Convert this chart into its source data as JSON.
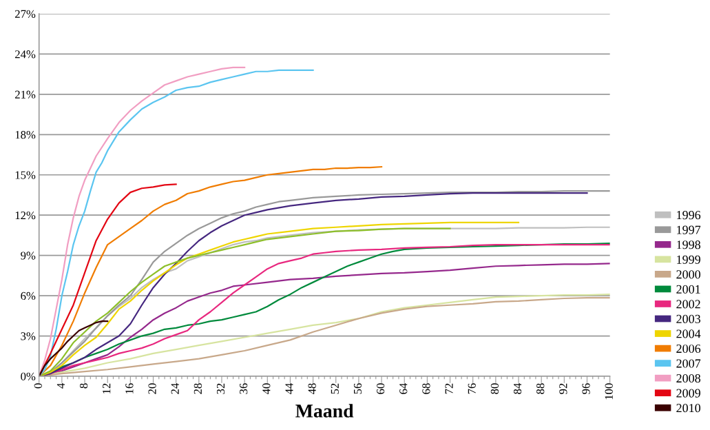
{
  "chart_data": {
    "type": "line",
    "xlabel": "Maand",
    "grid": "y",
    "legend": "right",
    "marker": "none",
    "line_style": "solid",
    "xlim": [
      0,
      100
    ],
    "ylim": [
      0,
      27
    ],
    "xticks": [
      0,
      {
        "value": 1,
        "label": null
      },
      {
        "value": 2,
        "label": null
      },
      {
        "value": 3,
        "label": null
      },
      4,
      {
        "value": 5,
        "label": null
      },
      {
        "value": 6,
        "label": null
      },
      {
        "value": 7,
        "label": null
      },
      8,
      {
        "value": 9,
        "label": null
      },
      {
        "value": 10,
        "label": null
      },
      {
        "value": 11,
        "label": null
      },
      12,
      {
        "value": 13,
        "label": null
      },
      {
        "value": 14,
        "label": null
      },
      {
        "value": 15,
        "label": null
      },
      16,
      {
        "value": 17,
        "label": null
      },
      {
        "value": 18,
        "label": null
      },
      {
        "value": 19,
        "label": null
      },
      20,
      {
        "value": 21,
        "label": null
      },
      {
        "value": 22,
        "label": null
      },
      {
        "value": 23,
        "label": null
      },
      24,
      {
        "value": 25,
        "label": null
      },
      {
        "value": 26,
        "label": null
      },
      {
        "value": 27,
        "label": null
      },
      28,
      {
        "value": 29,
        "label": null
      },
      {
        "value": 30,
        "label": null
      },
      {
        "value": 31,
        "label": null
      },
      32,
      {
        "value": 33,
        "label": null
      },
      {
        "value": 34,
        "label": null
      },
      {
        "value": 35,
        "label": null
      },
      36,
      {
        "value": 37,
        "label": null
      },
      {
        "value": 38,
        "label": null
      },
      {
        "value": 39,
        "label": null
      },
      40,
      {
        "value": 41,
        "label": null
      },
      {
        "value": 42,
        "label": null
      },
      {
        "value": 43,
        "label": null
      },
      44,
      {
        "value": 45,
        "label": null
      },
      {
        "value": 46,
        "label": null
      },
      {
        "value": 47,
        "label": null
      },
      48,
      {
        "value": 49,
        "label": null
      },
      {
        "value": 50,
        "label": null
      },
      {
        "value": 51,
        "label": null
      },
      52,
      {
        "value": 53,
        "label": null
      },
      {
        "value": 54,
        "label": null
      },
      {
        "value": 55,
        "label": null
      },
      56,
      {
        "value": 57,
        "label": null
      },
      {
        "value": 58,
        "label": null
      },
      {
        "value": 59,
        "label": null
      },
      60,
      {
        "value": 61,
        "label": null
      },
      {
        "value": 62,
        "label": null
      },
      {
        "value": 63,
        "label": null
      },
      64,
      {
        "value": 65,
        "label": null
      },
      {
        "value": 66,
        "label": null
      },
      {
        "value": 67,
        "label": null
      },
      68,
      {
        "value": 69,
        "label": null
      },
      {
        "value": 70,
        "label": null
      },
      {
        "value": 71,
        "label": null
      },
      72,
      {
        "value": 73,
        "label": null
      },
      {
        "value": 74,
        "label": null
      },
      {
        "value": 75,
        "label": null
      },
      76,
      {
        "value": 77,
        "label": null
      },
      {
        "value": 78,
        "label": null
      },
      {
        "value": 79,
        "label": null
      },
      80,
      {
        "value": 81,
        "label": null
      },
      {
        "value": 82,
        "label": null
      },
      {
        "value": 83,
        "label": null
      },
      84,
      {
        "value": 85,
        "label": null
      },
      {
        "value": 86,
        "label": null
      },
      {
        "value": 87,
        "label": null
      },
      88,
      {
        "value": 89,
        "label": null
      },
      {
        "value": 90,
        "label": null
      },
      {
        "value": 91,
        "label": null
      },
      92,
      {
        "value": 93,
        "label": null
      },
      {
        "value": 94,
        "label": null
      },
      {
        "value": 95,
        "label": null
      },
      96,
      {
        "value": 97,
        "label": null
      },
      {
        "value": 98,
        "label": null
      },
      {
        "value": 99,
        "label": null
      },
      100
    ],
    "yticks": [
      {
        "value": 0,
        "label": "0%"
      },
      {
        "value": 3,
        "label": "3%"
      },
      {
        "value": 6,
        "label": "6%"
      },
      {
        "value": 9,
        "label": "9%"
      },
      {
        "value": 12,
        "label": "12%"
      },
      {
        "value": 15,
        "label": "15%"
      },
      {
        "value": 18,
        "label": "18%"
      },
      {
        "value": 21,
        "label": "21%"
      },
      {
        "value": 24,
        "label": "24%"
      },
      {
        "value": 27,
        "label": "27%"
      }
    ],
    "series": [
      {
        "name": "1996",
        "color": "#bfbfbf",
        "x": [
          0,
          2,
          4,
          6,
          8,
          10,
          12,
          14,
          16,
          18,
          20,
          22,
          24,
          26,
          28,
          30,
          32,
          34,
          36,
          38,
          40,
          44,
          48,
          52,
          56,
          60,
          64,
          68,
          72,
          76,
          80,
          84,
          88,
          92,
          96,
          100
        ],
        "values": [
          0,
          0.3,
          1.0,
          1.9,
          2.8,
          3.6,
          4.5,
          5.2,
          5.8,
          6.6,
          7.2,
          7.7,
          8.0,
          8.6,
          8.9,
          9.2,
          9.5,
          9.8,
          10.0,
          10.1,
          10.3,
          10.5,
          10.7,
          10.8,
          10.9,
          10.95,
          11.0,
          11.0,
          11.0,
          11.0,
          11.0,
          11.05,
          11.05,
          11.05,
          11.1,
          11.1
        ]
      },
      {
        "name": "1997",
        "color": "#999999",
        "x": [
          0,
          2,
          4,
          6,
          8,
          10,
          12,
          14,
          16,
          18,
          20,
          22,
          24,
          26,
          28,
          30,
          32,
          34,
          36,
          38,
          40,
          42,
          44,
          48,
          52,
          56,
          60,
          64,
          68,
          72,
          76,
          80,
          84,
          88,
          92,
          96,
          100
        ],
        "values": [
          0,
          0.3,
          1.0,
          1.8,
          2.6,
          3.6,
          4.5,
          5.3,
          6.0,
          7.2,
          8.5,
          9.3,
          9.9,
          10.5,
          11.0,
          11.4,
          11.8,
          12.1,
          12.3,
          12.6,
          12.8,
          13.0,
          13.1,
          13.3,
          13.4,
          13.5,
          13.55,
          13.6,
          13.65,
          13.7,
          13.7,
          13.7,
          13.75,
          13.75,
          13.8,
          13.8,
          13.8
        ]
      },
      {
        "name": "1998",
        "color": "#95288c",
        "x": [
          0,
          2,
          4,
          6,
          8,
          10,
          12,
          14,
          16,
          18,
          20,
          22,
          24,
          26,
          28,
          30,
          32,
          34,
          36,
          40,
          44,
          48,
          52,
          56,
          60,
          64,
          68,
          72,
          76,
          80,
          84,
          88,
          92,
          96,
          100
        ],
        "values": [
          0,
          0.2,
          0.4,
          0.7,
          1.0,
          1.3,
          1.6,
          2.2,
          2.9,
          3.5,
          4.2,
          4.7,
          5.1,
          5.6,
          5.9,
          6.2,
          6.4,
          6.7,
          6.8,
          7.0,
          7.2,
          7.3,
          7.45,
          7.55,
          7.65,
          7.7,
          7.8,
          7.9,
          8.05,
          8.2,
          8.25,
          8.3,
          8.35,
          8.35,
          8.4
        ]
      },
      {
        "name": "1999",
        "color": "#d7e4a0",
        "x": [
          0,
          4,
          8,
          12,
          16,
          20,
          24,
          28,
          32,
          36,
          40,
          44,
          48,
          52,
          56,
          60,
          64,
          68,
          72,
          76,
          80,
          84,
          88,
          92,
          96,
          100
        ],
        "values": [
          0,
          0.3,
          0.6,
          1.0,
          1.3,
          1.7,
          2.0,
          2.3,
          2.6,
          2.9,
          3.2,
          3.5,
          3.8,
          4.0,
          4.3,
          4.8,
          5.1,
          5.3,
          5.5,
          5.7,
          5.9,
          5.95,
          6.0,
          6.05,
          6.05,
          6.1
        ]
      },
      {
        "name": "2000",
        "color": "#c8a88a",
        "x": [
          0,
          4,
          8,
          12,
          16,
          20,
          24,
          28,
          32,
          36,
          40,
          44,
          48,
          52,
          56,
          60,
          64,
          68,
          72,
          76,
          80,
          84,
          88,
          92,
          96,
          100
        ],
        "values": [
          0,
          0.2,
          0.35,
          0.5,
          0.7,
          0.9,
          1.1,
          1.3,
          1.6,
          1.9,
          2.3,
          2.7,
          3.3,
          3.8,
          4.3,
          4.7,
          5.0,
          5.2,
          5.3,
          5.4,
          5.55,
          5.6,
          5.7,
          5.8,
          5.85,
          5.85
        ]
      },
      {
        "name": "2001",
        "color": "#008a3c",
        "x": [
          0,
          2,
          4,
          6,
          8,
          10,
          12,
          14,
          16,
          18,
          20,
          22,
          24,
          26,
          28,
          30,
          32,
          34,
          36,
          38,
          40,
          42,
          44,
          46,
          48,
          50,
          52,
          54,
          56,
          58,
          60,
          62,
          64,
          68,
          72,
          76,
          80,
          84,
          88,
          92,
          96,
          100
        ],
        "values": [
          0,
          0.3,
          0.7,
          1.0,
          1.4,
          1.7,
          2.0,
          2.4,
          2.7,
          3.0,
          3.2,
          3.5,
          3.6,
          3.8,
          3.9,
          4.1,
          4.2,
          4.4,
          4.6,
          4.8,
          5.2,
          5.7,
          6.1,
          6.6,
          7.0,
          7.4,
          7.8,
          8.2,
          8.5,
          8.8,
          9.1,
          9.3,
          9.45,
          9.55,
          9.6,
          9.65,
          9.7,
          9.75,
          9.8,
          9.85,
          9.85,
          9.9
        ]
      },
      {
        "name": "2002",
        "color": "#e8287f",
        "x": [
          0,
          2,
          4,
          6,
          8,
          10,
          12,
          14,
          16,
          18,
          20,
          22,
          24,
          26,
          28,
          30,
          32,
          34,
          36,
          38,
          40,
          42,
          44,
          46,
          48,
          50,
          52,
          56,
          60,
          64,
          68,
          72,
          76,
          80,
          84,
          88,
          92,
          96,
          100
        ],
        "values": [
          0,
          0.2,
          0.5,
          0.8,
          1.0,
          1.2,
          1.4,
          1.7,
          1.9,
          2.1,
          2.4,
          2.8,
          3.1,
          3.4,
          4.2,
          4.8,
          5.5,
          6.2,
          6.8,
          7.4,
          8.0,
          8.4,
          8.6,
          8.8,
          9.1,
          9.2,
          9.3,
          9.4,
          9.45,
          9.55,
          9.6,
          9.65,
          9.75,
          9.8,
          9.8,
          9.8,
          9.8,
          9.8,
          9.8
        ]
      },
      {
        "name": "2003",
        "color": "#45277f",
        "x": [
          0,
          2,
          4,
          6,
          8,
          10,
          12,
          14,
          16,
          18,
          20,
          22,
          24,
          26,
          28,
          30,
          32,
          34,
          36,
          38,
          40,
          44,
          48,
          52,
          56,
          60,
          64,
          68,
          72,
          76,
          80,
          84,
          88,
          92,
          96
        ],
        "values": [
          0,
          0.2,
          0.6,
          1.0,
          1.4,
          2.0,
          2.5,
          3.0,
          3.9,
          5.3,
          6.6,
          7.6,
          8.4,
          9.3,
          10.1,
          10.7,
          11.2,
          11.6,
          12.0,
          12.2,
          12.4,
          12.7,
          12.9,
          13.1,
          13.2,
          13.35,
          13.4,
          13.5,
          13.6,
          13.65,
          13.65,
          13.65,
          13.65,
          13.65,
          13.65
        ]
      },
      {
        "name": "2004",
        "color": "#eed500",
        "x": [
          0,
          2,
          4,
          6,
          8,
          10,
          12,
          14,
          16,
          18,
          20,
          22,
          24,
          26,
          28,
          30,
          32,
          34,
          36,
          38,
          40,
          44,
          48,
          52,
          56,
          60,
          64,
          68,
          72,
          76,
          80,
          84
        ],
        "values": [
          0,
          0.3,
          0.8,
          1.6,
          2.3,
          2.9,
          3.9,
          5.0,
          5.6,
          6.4,
          7.1,
          7.7,
          8.3,
          8.8,
          9.1,
          9.4,
          9.7,
          10.0,
          10.2,
          10.4,
          10.6,
          10.8,
          11.0,
          11.1,
          11.2,
          11.3,
          11.35,
          11.4,
          11.45,
          11.45,
          11.45,
          11.45
        ]
      },
      {
        "color": "#8dbf2a",
        "x": [
          0,
          2,
          4,
          6,
          8,
          10,
          12,
          14,
          16,
          18,
          20,
          22,
          24,
          26,
          28,
          30,
          32,
          34,
          36,
          38,
          40,
          44,
          48,
          52,
          56,
          60,
          64,
          68,
          72
        ],
        "values": [
          0,
          0.4,
          1.3,
          2.5,
          3.3,
          4.1,
          4.7,
          5.5,
          6.3,
          7.0,
          7.6,
          8.2,
          8.5,
          8.8,
          9.0,
          9.2,
          9.4,
          9.6,
          9.8,
          10.0,
          10.2,
          10.4,
          10.6,
          10.8,
          10.85,
          10.95,
          11.0,
          11.0,
          11.0
        ]
      },
      {
        "name": "2006",
        "color": "#f07c00",
        "x": [
          0,
          2,
          4,
          6,
          8,
          10,
          12,
          14,
          16,
          18,
          20,
          22,
          24,
          26,
          28,
          30,
          32,
          34,
          36,
          38,
          40,
          42,
          44,
          46,
          48,
          50,
          52,
          54,
          56,
          58,
          60
        ],
        "values": [
          0,
          0.8,
          2.3,
          4.1,
          6.2,
          8.1,
          9.8,
          10.4,
          11.0,
          11.6,
          12.3,
          12.8,
          13.1,
          13.6,
          13.8,
          14.1,
          14.3,
          14.5,
          14.6,
          14.8,
          15.0,
          15.1,
          15.2,
          15.3,
          15.4,
          15.4,
          15.5,
          15.5,
          15.55,
          15.55,
          15.6
        ]
      },
      {
        "name": "2007",
        "color": "#5bc5f0",
        "x": [
          0,
          1,
          2,
          3,
          4,
          5,
          6,
          7,
          8,
          9,
          10,
          11,
          12,
          14,
          16,
          18,
          20,
          22,
          24,
          26,
          28,
          30,
          32,
          34,
          36,
          38,
          40,
          42,
          44,
          46,
          48
        ],
        "values": [
          0,
          0.5,
          1.5,
          3.5,
          6.0,
          7.8,
          9.8,
          11.2,
          12.3,
          13.8,
          15.2,
          15.9,
          16.8,
          18.2,
          19.1,
          19.9,
          20.4,
          20.8,
          21.3,
          21.5,
          21.6,
          21.9,
          22.1,
          22.3,
          22.5,
          22.7,
          22.7,
          22.8,
          22.8,
          22.8,
          22.8
        ]
      },
      {
        "name": "2008",
        "color": "#f19ec2",
        "x": [
          0,
          1,
          2,
          3,
          4,
          5,
          6,
          7,
          8,
          10,
          12,
          14,
          16,
          18,
          20,
          22,
          24,
          26,
          28,
          30,
          32,
          34,
          36
        ],
        "values": [
          0,
          1.2,
          2.8,
          5.0,
          7.2,
          9.8,
          11.8,
          13.4,
          14.6,
          16.4,
          17.7,
          18.9,
          19.8,
          20.5,
          21.1,
          21.7,
          22.0,
          22.3,
          22.5,
          22.7,
          22.9,
          23.0,
          23.0
        ]
      },
      {
        "name": "2009",
        "color": "#e30613",
        "x": [
          0,
          2,
          4,
          6,
          8,
          10,
          12,
          14,
          16,
          18,
          20,
          22,
          24
        ],
        "values": [
          0,
          1.7,
          3.5,
          5.3,
          7.7,
          10.1,
          11.7,
          12.9,
          13.7,
          14.0,
          14.1,
          14.25,
          14.3
        ]
      },
      {
        "name": "2010",
        "color": "#3a0000",
        "x": [
          0,
          1,
          2,
          3,
          4,
          5,
          6,
          7,
          8,
          9,
          10,
          11,
          12
        ],
        "values": [
          0,
          0.8,
          1.3,
          1.7,
          2.1,
          2.6,
          3.0,
          3.4,
          3.6,
          3.8,
          4.0,
          4.1,
          4.1
        ]
      }
    ]
  }
}
